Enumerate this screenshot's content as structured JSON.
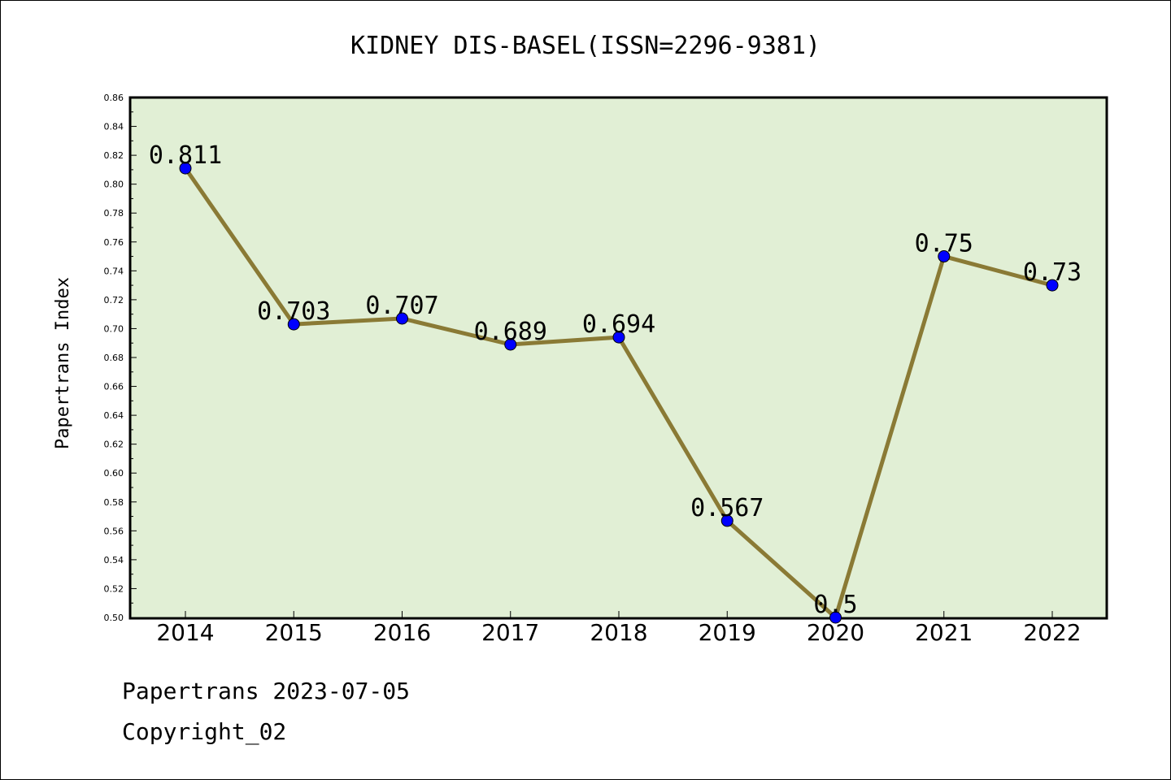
{
  "footer": {
    "date_line": "Papertrans 2023-07-05",
    "copyright": "Copyright_02"
  },
  "colors": {
    "plot_background": "#e1efd5",
    "line": "#8a7a35",
    "marker": "#0000ff"
  },
  "chart_data": {
    "type": "line",
    "title": "KIDNEY DIS-BASEL(ISSN=2296-9381)",
    "xlabel": "",
    "ylabel": "Papertrans Index",
    "categories": [
      "2014",
      "2015",
      "2016",
      "2017",
      "2018",
      "2019",
      "2020",
      "2021",
      "2022"
    ],
    "series": [
      {
        "values": [
          0.811,
          0.703,
          0.707,
          0.689,
          0.694,
          0.567,
          0.5,
          0.75,
          0.73
        ]
      }
    ],
    "data_labels": [
      "0.811",
      "0.703",
      "0.707",
      "0.689",
      "0.694",
      "0.567",
      "0.5",
      "0.75",
      "0.73"
    ],
    "ylim": [
      0.5,
      0.86
    ],
    "yticks": [
      "0.50",
      "0.52",
      "0.54",
      "0.56",
      "0.58",
      "0.60",
      "0.62",
      "0.64",
      "0.66",
      "0.68",
      "0.70",
      "0.72",
      "0.74",
      "0.76",
      "0.78",
      "0.80",
      "0.82",
      "0.84",
      "0.86"
    ],
    "grid": false,
    "legend": "none"
  }
}
